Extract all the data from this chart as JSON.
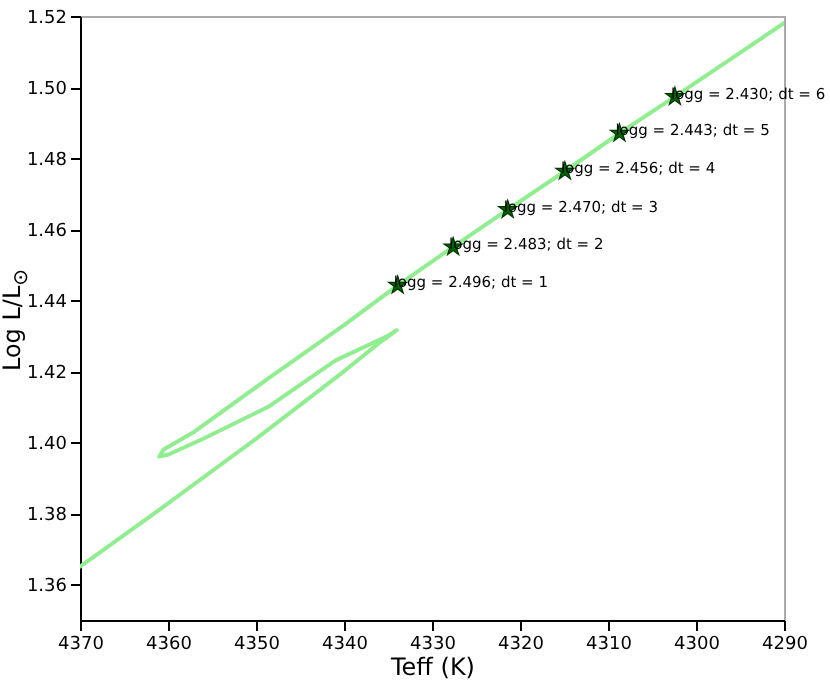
{
  "chart_data": {
    "type": "line",
    "xlabel": "Teff (K)",
    "ylabel": "Log L/L$_{⊙}$",
    "xlim": [
      4370,
      4290
    ],
    "xticks": [
      4370,
      4360,
      4350,
      4340,
      4330,
      4320,
      4310,
      4300,
      4290
    ],
    "ylim": [
      1.35,
      1.52
    ],
    "yticks": [
      1.36,
      1.38,
      {
        "value": 1.4,
        "label": "1.40"
      },
      1.42,
      1.44,
      1.46,
      1.48,
      {
        "value": 1.5,
        "label": "1.50"
      },
      1.52
    ],
    "grid": false,
    "line_style": "solid",
    "series": [
      {
        "color": "#90ee90",
        "x": [
          4370,
          4361,
          4350,
          4340,
          4336,
          4334,
          4335,
          4341,
          4348.6,
          4356,
          4360,
          4361,
          4360.5,
          4357,
          4348.6,
          4340,
          4333.9,
          4327.6,
          4321.4,
          4314.9,
          4308.7,
          4302.4,
          4290
        ],
        "values": [
          1.365,
          1.381,
          1.401,
          1.42,
          1.428,
          1.4316,
          1.43,
          1.423,
          1.41,
          1.401,
          1.3965,
          1.396,
          1.398,
          1.403,
          1.418,
          1.433,
          1.4442,
          1.455,
          1.4655,
          1.4763,
          1.487,
          1.4973,
          1.518
        ]
      },
      {
        "type": "scatter",
        "marker": "star",
        "color": "#006400",
        "x": [
          4333.9,
          4327.6,
          4321.4,
          4314.9,
          4308.7,
          4302.4
        ],
        "values": [
          1.4442,
          1.455,
          1.4655,
          1.4763,
          1.487,
          1.4973
        ]
      }
    ],
    "annotations": [
      {
        "text": "logg = 2.496; dt = 1",
        "x": 4333.9,
        "y": 1.4442
      },
      {
        "text": "logg = 2.483; dt = 2",
        "x": 4327.6,
        "y": 1.455
      },
      {
        "text": "logg = 2.470; dt = 3",
        "x": 4321.4,
        "y": 1.4655
      },
      {
        "text": "logg = 2.456; dt = 4",
        "x": 4314.9,
        "y": 1.4763
      },
      {
        "text": "logg = 2.443; dt = 5",
        "x": 4308.7,
        "y": 1.487
      },
      {
        "text": "logg = 2.430; dt = 6",
        "x": 4302.4,
        "y": 1.4973
      }
    ]
  }
}
